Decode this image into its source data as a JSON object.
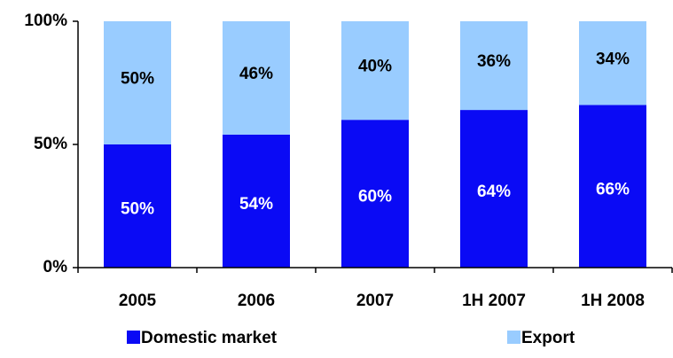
{
  "chart_data": {
    "type": "stacked_bar",
    "categories": [
      "2005",
      "2006",
      "2007",
      "1H 2007",
      "1H 2008"
    ],
    "series": [
      {
        "name": "Domestic market",
        "color": "#0a0af5",
        "values": [
          50,
          54,
          60,
          64,
          66
        ],
        "value_labels": [
          "50%",
          "54%",
          "60%",
          "64%",
          "66%"
        ]
      },
      {
        "name": "Export",
        "color": "#99ccff",
        "values": [
          50,
          46,
          40,
          36,
          34
        ],
        "value_labels": [
          "50%",
          "46%",
          "40%",
          "36%",
          "34%"
        ]
      }
    ],
    "ylim": [
      0,
      100
    ],
    "yticks": [
      {
        "value": 0,
        "label": "0%"
      },
      {
        "value": 50,
        "label": "50%"
      },
      {
        "value": 100,
        "label": "100%"
      }
    ],
    "legend": "bottom"
  }
}
